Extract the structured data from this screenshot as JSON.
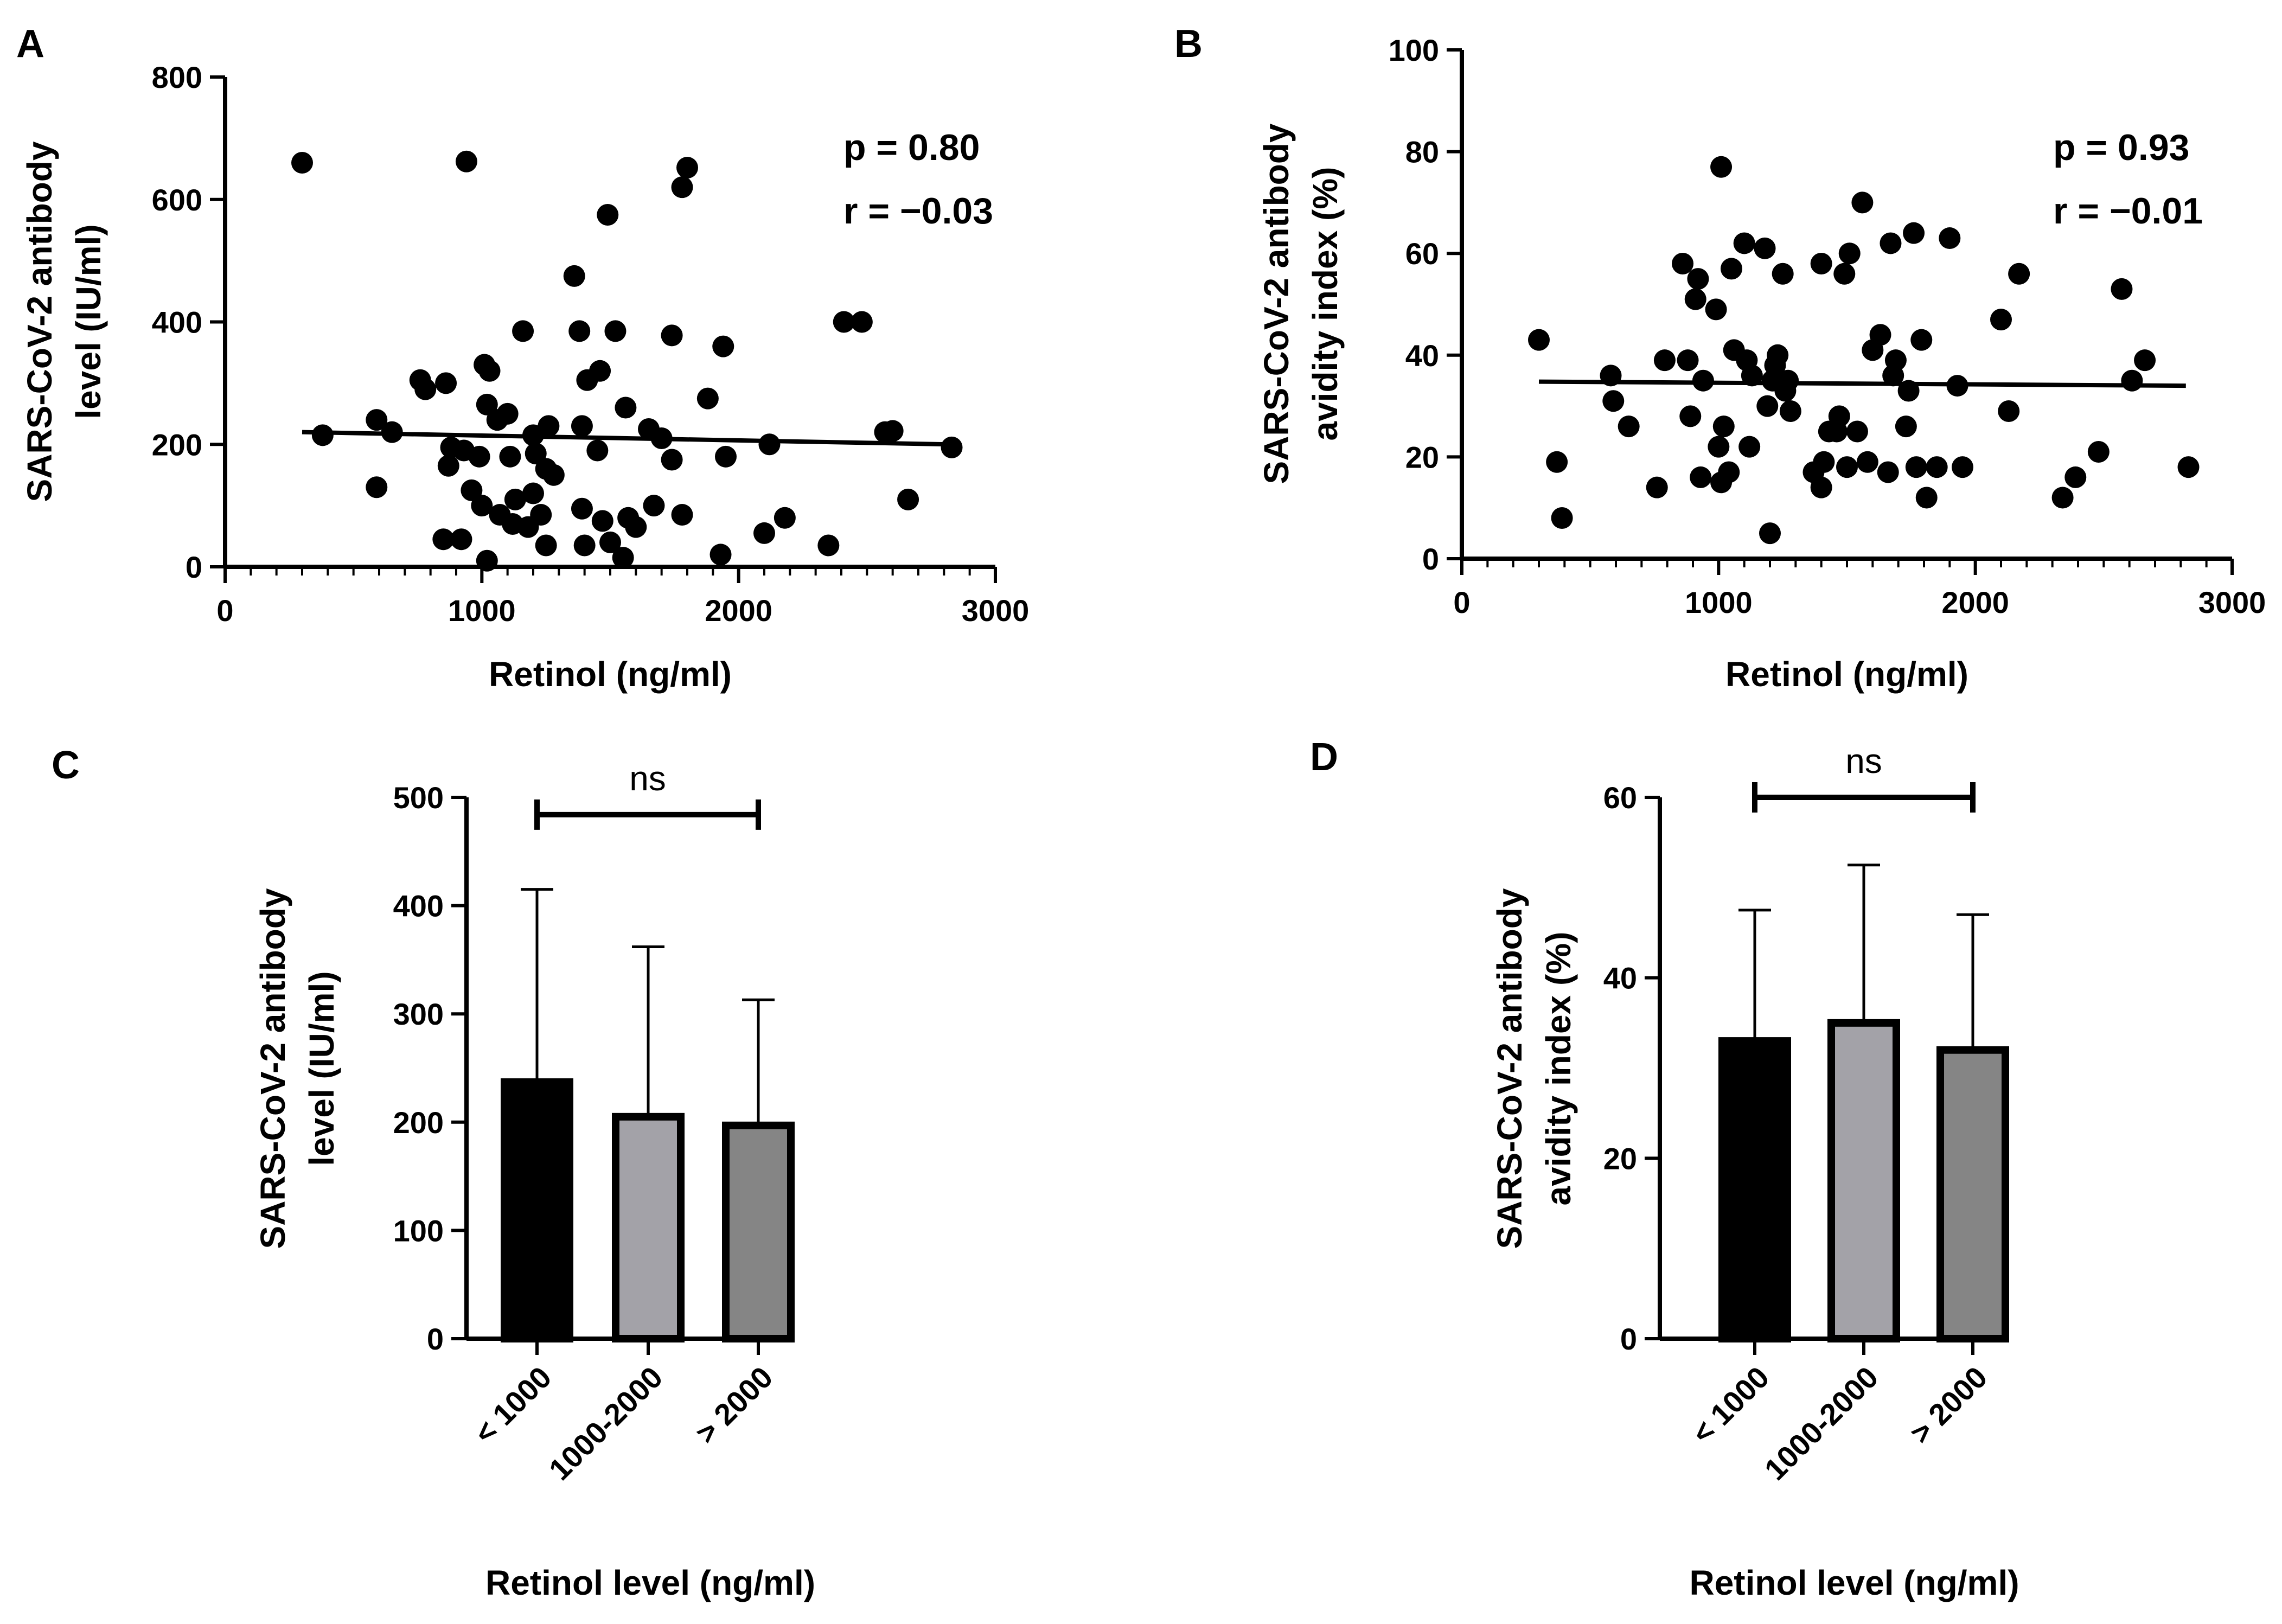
{
  "chart_data": [
    {
      "panel": "A",
      "type": "scatter",
      "xlabel": "Retinol (ng/ml)",
      "ylabel": [
        "SARS-CoV-2 antibody",
        "level (IU/ml)"
      ],
      "xlim": [
        0,
        3000
      ],
      "ylim": [
        0,
        800
      ],
      "xticks": [
        0,
        1000,
        2000,
        3000
      ],
      "yticks": [
        0,
        200,
        400,
        600,
        800
      ],
      "annotations": [
        "p = 0.80",
        "r =  −0.03"
      ],
      "fit": {
        "x": [
          300,
          2820
        ],
        "y": [
          220,
          200
        ]
      },
      "points": [
        [
          300,
          660
        ],
        [
          380,
          215
        ],
        [
          590,
          130
        ],
        [
          590,
          240
        ],
        [
          650,
          220
        ],
        [
          760,
          305
        ],
        [
          780,
          290
        ],
        [
          850,
          45
        ],
        [
          860,
          300
        ],
        [
          870,
          165
        ],
        [
          880,
          195
        ],
        [
          920,
          45
        ],
        [
          930,
          190
        ],
        [
          940,
          662
        ],
        [
          960,
          125
        ],
        [
          990,
          180
        ],
        [
          1000,
          100
        ],
        [
          1010,
          330
        ],
        [
          1020,
          265
        ],
        [
          1020,
          10
        ],
        [
          1030,
          320
        ],
        [
          1060,
          240
        ],
        [
          1070,
          85
        ],
        [
          1100,
          250
        ],
        [
          1110,
          180
        ],
        [
          1120,
          70
        ],
        [
          1130,
          110
        ],
        [
          1160,
          385
        ],
        [
          1180,
          65
        ],
        [
          1200,
          215
        ],
        [
          1200,
          120
        ],
        [
          1210,
          185
        ],
        [
          1230,
          85
        ],
        [
          1250,
          160
        ],
        [
          1250,
          35
        ],
        [
          1260,
          230
        ],
        [
          1280,
          150
        ],
        [
          1360,
          475
        ],
        [
          1380,
          385
        ],
        [
          1390,
          230
        ],
        [
          1390,
          95
        ],
        [
          1400,
          35
        ],
        [
          1410,
          305
        ],
        [
          1450,
          190
        ],
        [
          1460,
          320
        ],
        [
          1470,
          75
        ],
        [
          1490,
          575
        ],
        [
          1500,
          40
        ],
        [
          1520,
          385
        ],
        [
          1550,
          15
        ],
        [
          1560,
          260
        ],
        [
          1570,
          80
        ],
        [
          1600,
          65
        ],
        [
          1650,
          225
        ],
        [
          1670,
          100
        ],
        [
          1700,
          210
        ],
        [
          1740,
          378
        ],
        [
          1740,
          175
        ],
        [
          1780,
          85
        ],
        [
          1780,
          620
        ],
        [
          1800,
          652
        ],
        [
          1880,
          275
        ],
        [
          1930,
          20
        ],
        [
          1940,
          360
        ],
        [
          1950,
          180
        ],
        [
          2100,
          55
        ],
        [
          2120,
          200
        ],
        [
          2180,
          80
        ],
        [
          2350,
          35
        ],
        [
          2410,
          400
        ],
        [
          2480,
          400
        ],
        [
          2570,
          220
        ],
        [
          2600,
          222
        ],
        [
          2660,
          110
        ],
        [
          2830,
          195
        ]
      ]
    },
    {
      "panel": "B",
      "type": "scatter",
      "xlabel": "Retinol (ng/ml)",
      "ylabel": [
        "SARS-CoV-2 antibody",
        "avidity index (%)"
      ],
      "xlim": [
        0,
        3000
      ],
      "ylim": [
        0,
        100
      ],
      "xticks": [
        0,
        1000,
        2000,
        3000
      ],
      "yticks": [
        0,
        20,
        40,
        60,
        80,
        100
      ],
      "annotations": [
        "p = 0.93",
        "r =  −0.01"
      ],
      "fit": {
        "x": [
          300,
          2820
        ],
        "y": [
          34.8,
          34.0
        ]
      },
      "points": [
        [
          300,
          43
        ],
        [
          370,
          19
        ],
        [
          390,
          8
        ],
        [
          580,
          36
        ],
        [
          590,
          31
        ],
        [
          650,
          26
        ],
        [
          760,
          14
        ],
        [
          790,
          39
        ],
        [
          860,
          58
        ],
        [
          880,
          39
        ],
        [
          890,
          28
        ],
        [
          910,
          51
        ],
        [
          920,
          55
        ],
        [
          930,
          16
        ],
        [
          940,
          35
        ],
        [
          990,
          49
        ],
        [
          1000,
          22
        ],
        [
          1010,
          77
        ],
        [
          1010,
          15
        ],
        [
          1020,
          26
        ],
        [
          1040,
          17
        ],
        [
          1050,
          57
        ],
        [
          1060,
          41
        ],
        [
          1100,
          62
        ],
        [
          1110,
          39
        ],
        [
          1120,
          22
        ],
        [
          1130,
          36
        ],
        [
          1180,
          61
        ],
        [
          1190,
          30
        ],
        [
          1200,
          5
        ],
        [
          1210,
          35
        ],
        [
          1220,
          38
        ],
        [
          1230,
          40
        ],
        [
          1250,
          56
        ],
        [
          1260,
          33
        ],
        [
          1270,
          35
        ],
        [
          1280,
          29
        ],
        [
          1370,
          17
        ],
        [
          1400,
          58
        ],
        [
          1400,
          14
        ],
        [
          1410,
          19
        ],
        [
          1430,
          25
        ],
        [
          1460,
          25
        ],
        [
          1470,
          28
        ],
        [
          1490,
          56
        ],
        [
          1500,
          18
        ],
        [
          1510,
          60
        ],
        [
          1540,
          25
        ],
        [
          1560,
          70
        ],
        [
          1580,
          19
        ],
        [
          1600,
          41
        ],
        [
          1630,
          44
        ],
        [
          1660,
          17
        ],
        [
          1670,
          62
        ],
        [
          1680,
          36
        ],
        [
          1690,
          39
        ],
        [
          1730,
          26
        ],
        [
          1740,
          33
        ],
        [
          1760,
          64
        ],
        [
          1770,
          18
        ],
        [
          1790,
          43
        ],
        [
          1810,
          12
        ],
        [
          1850,
          18
        ],
        [
          1900,
          63
        ],
        [
          1930,
          34
        ],
        [
          1950,
          18
        ],
        [
          2100,
          47
        ],
        [
          2130,
          29
        ],
        [
          2170,
          56
        ],
        [
          2340,
          12
        ],
        [
          2390,
          16
        ],
        [
          2480,
          21
        ],
        [
          2570,
          53
        ],
        [
          2610,
          35
        ],
        [
          2660,
          39
        ],
        [
          2830,
          18
        ]
      ]
    },
    {
      "panel": "C",
      "type": "bar",
      "categories": [
        "< 1000",
        "1000-2000",
        "> 2000"
      ],
      "values": [
        237,
        205,
        197
      ],
      "errors": [
        178,
        157,
        116
      ],
      "colors": [
        "#000000",
        "#A3A2A8",
        "#858585"
      ],
      "xlabel": "Retinol level (ng/ml)",
      "ylabel": [
        "SARS-CoV-2 antibody",
        "level (IU/ml)"
      ],
      "ylim": [
        0,
        500
      ],
      "yticks": [
        0,
        100,
        200,
        300,
        400,
        500
      ],
      "significance": {
        "from": 0,
        "to": 2,
        "value": 484,
        "label": "ns"
      }
    },
    {
      "panel": "D",
      "type": "bar",
      "categories": [
        "< 1000",
        "1000-2000",
        "> 2000"
      ],
      "values": [
        33,
        35,
        32
      ],
      "errors": [
        14.5,
        17.5,
        15
      ],
      "colors": [
        "#000000",
        "#A3A2A8",
        "#858585"
      ],
      "xlabel": "Retinol level (ng/ml)",
      "ylabel": [
        "SARS-CoV-2 antibody",
        "avidity index (%)"
      ],
      "ylim": [
        0,
        60
      ],
      "yticks": [
        0,
        20,
        40,
        60
      ],
      "significance": {
        "from": 0,
        "to": 2,
        "value": 60,
        "label": "ns"
      }
    }
  ]
}
